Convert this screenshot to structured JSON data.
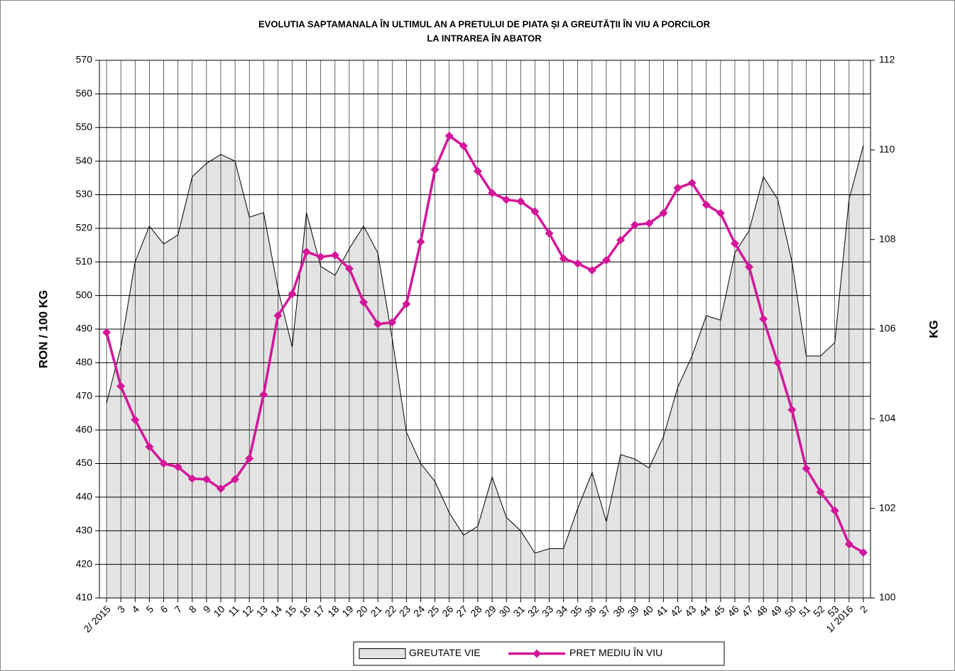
{
  "chart_data": {
    "type": "line",
    "title": [
      "EVOLUTIA SAPTAMANALA  ÎN ULTIMUL AN A PRETULUI  DE PIATA ȘI A GREUTĂȚII  ÎN VIU A PORCILOR",
      "LA INTRAREA ÎN ABATOR"
    ],
    "ylabel": "RON / 100 KG",
    "y2label": "KG",
    "categories": [
      "2/ 2015",
      "3",
      "4",
      "5",
      "6",
      "7",
      "8",
      "9",
      "10",
      "11",
      "12",
      "13",
      "14",
      "15",
      "16",
      "17",
      "18",
      "19",
      "20",
      "21",
      "22",
      "23",
      "24",
      "25",
      "26",
      "27",
      "28",
      "29",
      "30",
      "31",
      "32",
      "33",
      "34",
      "35",
      "36",
      "37",
      "38",
      "39",
      "40",
      "41",
      "42",
      "43",
      "44",
      "45",
      "46",
      "47",
      "48",
      "49",
      "50",
      "51",
      "52",
      "53",
      "1/ 2016",
      "2"
    ],
    "series": [
      {
        "name": "GREUTATE  VIE",
        "type": "area",
        "axis": "y2",
        "color": "#e3e3e3",
        "values": [
          104.35,
          105.6,
          107.5,
          108.3,
          107.9,
          108.1,
          109.4,
          109.7,
          109.9,
          109.75,
          108.5,
          108.6,
          106.9,
          105.6,
          108.6,
          107.4,
          107.2,
          107.8,
          108.3,
          107.7,
          105.8,
          103.7,
          103,
          102.6,
          101.9,
          101.4,
          101.6,
          102.7,
          101.8,
          101.5,
          101,
          101.1,
          101.1,
          102,
          102.8,
          101.7,
          103.2,
          103.1,
          102.9,
          103.6,
          104.7,
          105.4,
          106.3,
          106.2,
          107.7,
          108.2,
          109.4,
          108.9,
          107.5,
          105.4,
          105.4,
          105.7,
          108.9,
          110.1
        ]
      },
      {
        "name": "PRET MEDIU ÎN VIU",
        "type": "line",
        "color": "#d4169a",
        "values": [
          489,
          473,
          463,
          455,
          450,
          449,
          445.5,
          445.3,
          442.5,
          445.3,
          451.5,
          470.5,
          494,
          500.5,
          513,
          511.5,
          512,
          508,
          498,
          491.5,
          492,
          497.5,
          516,
          537.5,
          547.5,
          544.5,
          537,
          530.5,
          528.5,
          528,
          525,
          518.5,
          511,
          509.5,
          507.5,
          510.5,
          516.5,
          521,
          521.5,
          524.5,
          532,
          533.5,
          527,
          524.5,
          515.5,
          508.5,
          493,
          480,
          466,
          448.5,
          441.5,
          436,
          426,
          423.5
        ]
      }
    ],
    "ylim": [
      410,
      570
    ],
    "yticks": [
      410,
      420,
      430,
      440,
      450,
      460,
      470,
      480,
      490,
      500,
      510,
      520,
      530,
      540,
      550,
      560,
      570
    ],
    "y2lim": [
      100,
      112
    ],
    "y2ticks": [
      100,
      102,
      104,
      106,
      108,
      110,
      112
    ],
    "grid": true,
    "legend": "bottom"
  }
}
